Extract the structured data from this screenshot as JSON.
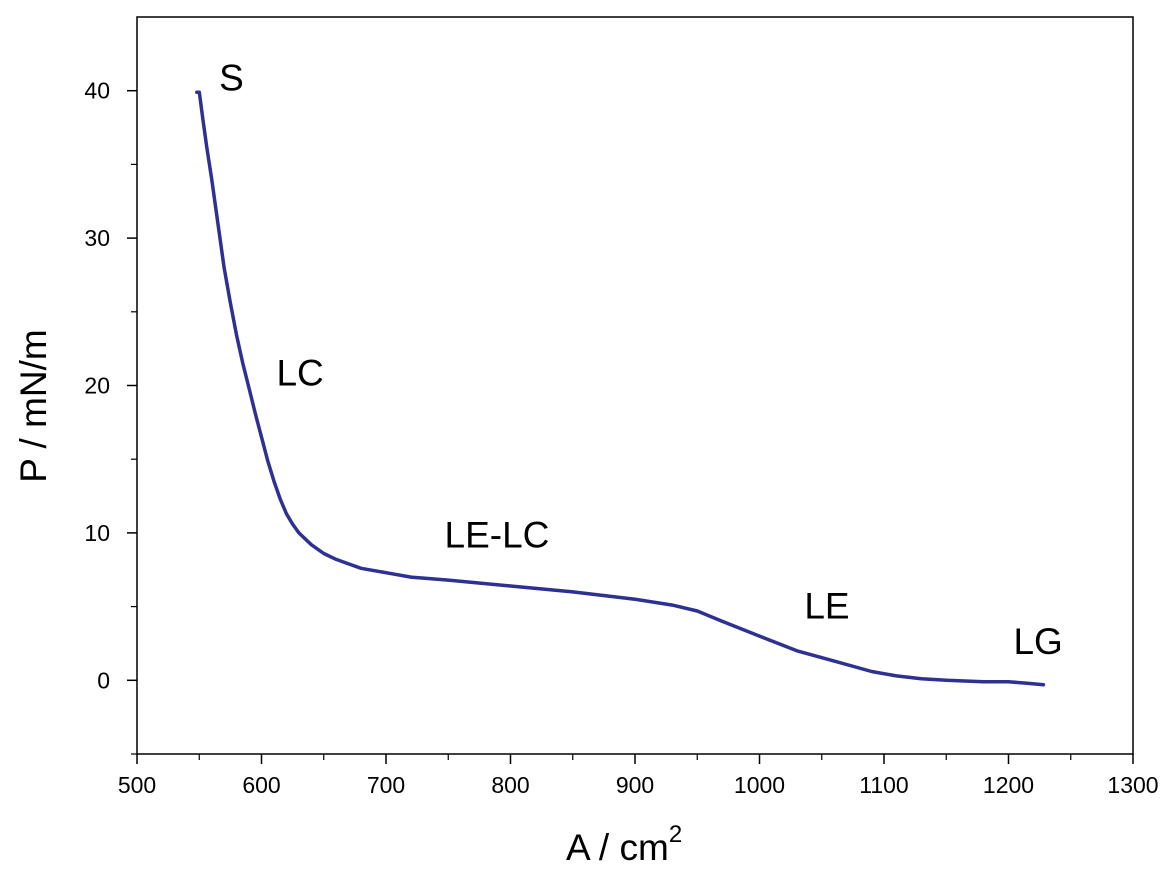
{
  "chart_data": {
    "type": "line",
    "xlabel": "A / cm",
    "xlabel_sup": "2",
    "ylabel": "P / mN/m",
    "xlim": [
      500,
      1300
    ],
    "ylim": [
      -5,
      45
    ],
    "x_ticks": [
      500,
      600,
      700,
      800,
      900,
      1000,
      1100,
      1200,
      1300
    ],
    "y_ticks": [
      0,
      10,
      20,
      30,
      40
    ],
    "x_tick_labels": [
      "500",
      "600",
      "700",
      "800",
      "900",
      "1000",
      "1100",
      "1200",
      "1300"
    ],
    "y_tick_labels": [
      "0",
      "10",
      "20",
      "30",
      "40"
    ],
    "x_minor_step": 50,
    "y_minor_step": 5,
    "grid": false,
    "line_color": "#2e3192",
    "series": [
      {
        "x": [
          548,
          550,
          553,
          556,
          560,
          565,
          570,
          575,
          580,
          585,
          590,
          595,
          600,
          605,
          610,
          615,
          620,
          625,
          630,
          640,
          650,
          660,
          670,
          680,
          700,
          720,
          750,
          800,
          850,
          900,
          930,
          950,
          970,
          1000,
          1030,
          1060,
          1090,
          1110,
          1130,
          1150,
          1180,
          1200,
          1215,
          1228
        ],
        "y": [
          39.9,
          39.9,
          38.0,
          36.2,
          34.0,
          31.0,
          28.0,
          25.6,
          23.4,
          21.5,
          19.8,
          18.1,
          16.5,
          14.9,
          13.5,
          12.3,
          11.3,
          10.6,
          10.0,
          9.2,
          8.6,
          8.2,
          7.9,
          7.6,
          7.3,
          7.0,
          6.8,
          6.4,
          6.0,
          5.5,
          5.1,
          4.7,
          4.0,
          3.0,
          2.0,
          1.3,
          0.6,
          0.3,
          0.1,
          0.0,
          -0.1,
          -0.1,
          -0.2,
          -0.3
        ]
      }
    ],
    "annotations": [
      {
        "text": "S",
        "x": 566,
        "y": 40.0
      },
      {
        "text": "LC",
        "x": 612,
        "y": 20.0
      },
      {
        "text": "LE-LC",
        "x": 747,
        "y": 9.0
      },
      {
        "text": "LE",
        "x": 1036,
        "y": 4.2
      },
      {
        "text": "LG",
        "x": 1204,
        "y": 1.8
      }
    ]
  }
}
